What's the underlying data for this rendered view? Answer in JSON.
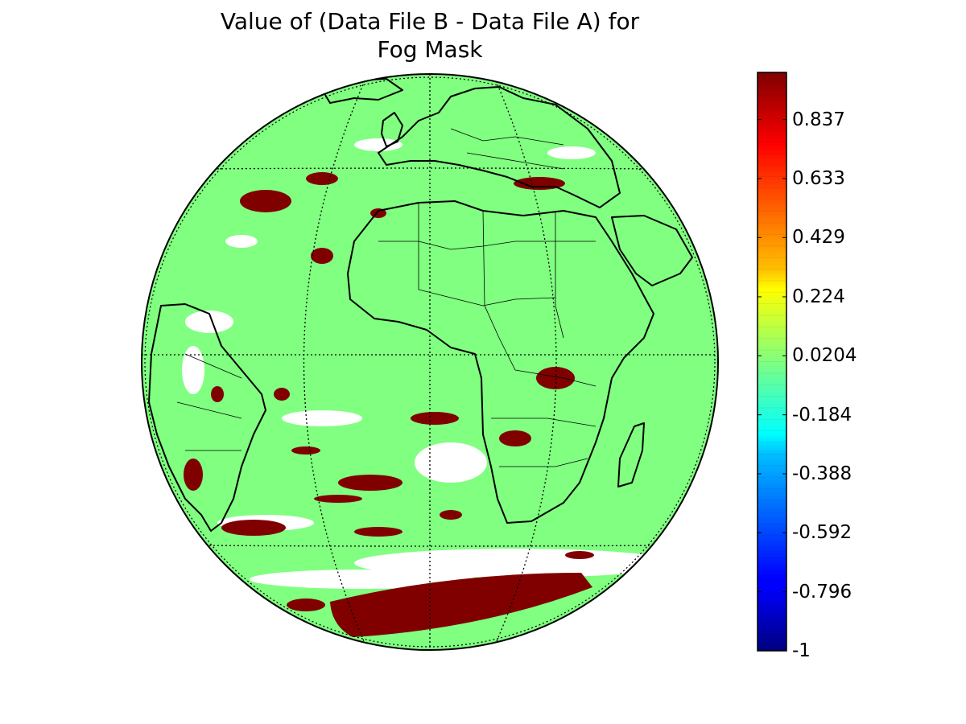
{
  "title": {
    "line1": "Value of (Data File B - Data File A) for",
    "line2": "Fog Mask"
  },
  "colorbar": {
    "min": -1,
    "max": 1,
    "colormap": "jet",
    "ticks": [
      "0.837",
      "0.633",
      "0.429",
      "0.224",
      "0.0204",
      "-0.184",
      "-0.388",
      "-0.592",
      "-0.796",
      "-1"
    ],
    "tick_values": [
      0.837,
      0.633,
      0.429,
      0.224,
      0.0204,
      -0.184,
      -0.388,
      -0.592,
      -0.796,
      -1
    ]
  },
  "map": {
    "projection": "orthographic",
    "background_value": 0.0204,
    "ocean_land_color": "#80ff80",
    "positive_color": "#800000",
    "missing_color": "#ffffff",
    "gridlines": "dotted"
  }
}
